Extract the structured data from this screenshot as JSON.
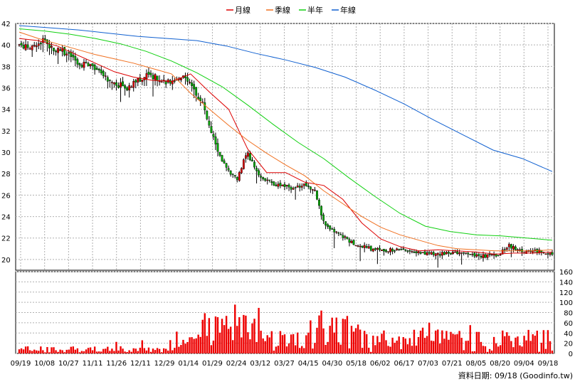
{
  "chart_data": {
    "type": "candlestick+line+bar",
    "legend": [
      {
        "label": "月線",
        "color": "#dd0000"
      },
      {
        "label": "季線",
        "color": "#f07020"
      },
      {
        "label": "半年",
        "color": "#10d010"
      },
      {
        "label": "年線",
        "color": "#1060d0"
      }
    ],
    "price_axis": {
      "min": 19,
      "max": 42,
      "ticks": [
        20,
        22,
        24,
        26,
        28,
        30,
        32,
        34,
        36,
        38,
        40,
        42
      ]
    },
    "volume_axis": {
      "min": 0,
      "max": 160,
      "ticks": [
        0,
        20,
        40,
        60,
        80,
        100,
        120,
        140,
        160
      ]
    },
    "x_labels": [
      "09/19",
      "10/08",
      "10/27",
      "11/11",
      "11/26",
      "12/11",
      "12/29",
      "01/14",
      "01/29",
      "02/24",
      "03/12",
      "03/27",
      "04/15",
      "04/30",
      "05/18",
      "06/02",
      "06/17",
      "07/03",
      "07/21",
      "08/05",
      "08/20",
      "09/04",
      "09/18"
    ],
    "moving_averages": {
      "月線": [
        40.6,
        40.4,
        39.9,
        39.1,
        38.3,
        37.5,
        37.0,
        36.7,
        36.6,
        37.3,
        35.6,
        34.0,
        30.3,
        28.1,
        28.1,
        27.2,
        26.9,
        25.6,
        23.4,
        21.9,
        21.2,
        20.8,
        20.9,
        20.8,
        20.7,
        20.5,
        20.6,
        20.6,
        20.7
      ],
      "季線": [
        41.2,
        40.6,
        40.1,
        39.6,
        39.1,
        38.7,
        38.3,
        37.8,
        37.3,
        35.5,
        34.0,
        32.5,
        31.1,
        29.9,
        28.8,
        27.8,
        26.4,
        25.2,
        24.0,
        23.0,
        22.3,
        21.8,
        21.3,
        21.0,
        20.9,
        20.8,
        20.8,
        20.8,
        20.9
      ],
      "半年": [
        41.5,
        41.3,
        41.0,
        40.6,
        40.1,
        39.4,
        38.5,
        37.4,
        36.1,
        34.4,
        32.6,
        30.9,
        29.4,
        27.6,
        25.9,
        24.3,
        23.1,
        22.6,
        22.3,
        22.2,
        22.0,
        21.8
      ],
      "年線": [
        41.8,
        41.6,
        41.4,
        41.1,
        40.8,
        40.6,
        40.4,
        39.9,
        39.2,
        38.6,
        37.9,
        37.0,
        35.8,
        34.5,
        33.0,
        31.6,
        30.2,
        29.4,
        28.2
      ]
    },
    "candles_approx": "daily OHLC approximated; price declines from ~40 (09/19) to ~20.5 (09/18)",
    "source_label": "資料日期: 09/18  (Goodinfo.tw)"
  }
}
